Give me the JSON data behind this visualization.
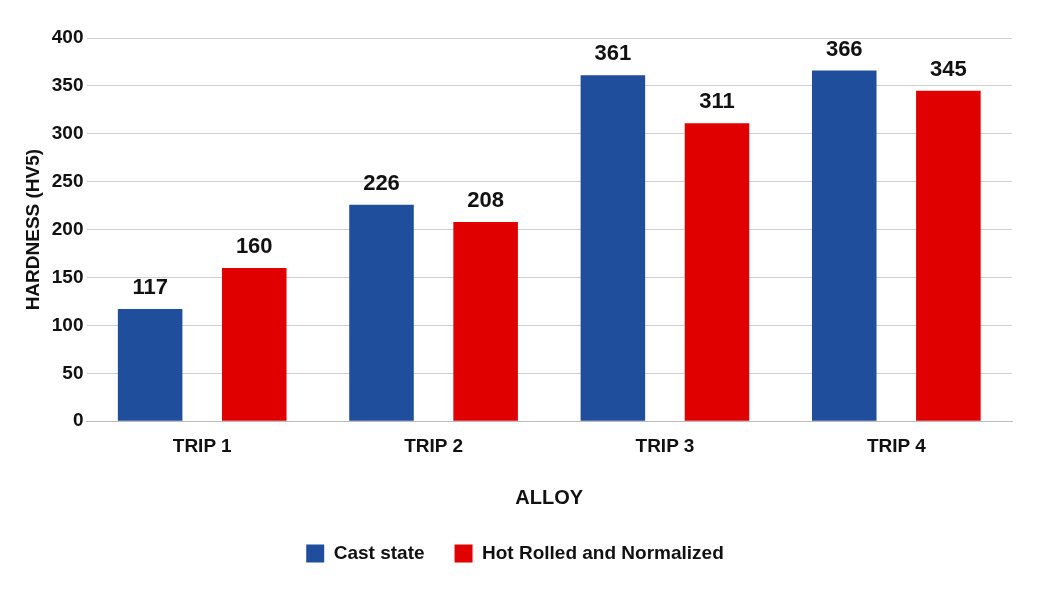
{
  "chart_data": {
    "type": "bar",
    "xlabel": "ALLOY",
    "ylabel": "HARDNESS (HV5)",
    "categories": [
      "TRIP 1",
      "TRIP 2",
      "TRIP 3",
      "TRIP 4"
    ],
    "series": [
      {
        "name": "Cast state",
        "color": "#1f4e9c",
        "values": [
          117,
          226,
          361,
          366
        ]
      },
      {
        "name": "Hot Rolled and Normalized",
        "color": "#e00000",
        "values": [
          160,
          208,
          311,
          345
        ]
      }
    ],
    "ylim": [
      0,
      400
    ],
    "yticks": [
      0,
      50,
      100,
      150,
      200,
      250,
      300,
      350,
      400
    ],
    "grid": "y",
    "legend": "bottom",
    "data_labels": true
  }
}
